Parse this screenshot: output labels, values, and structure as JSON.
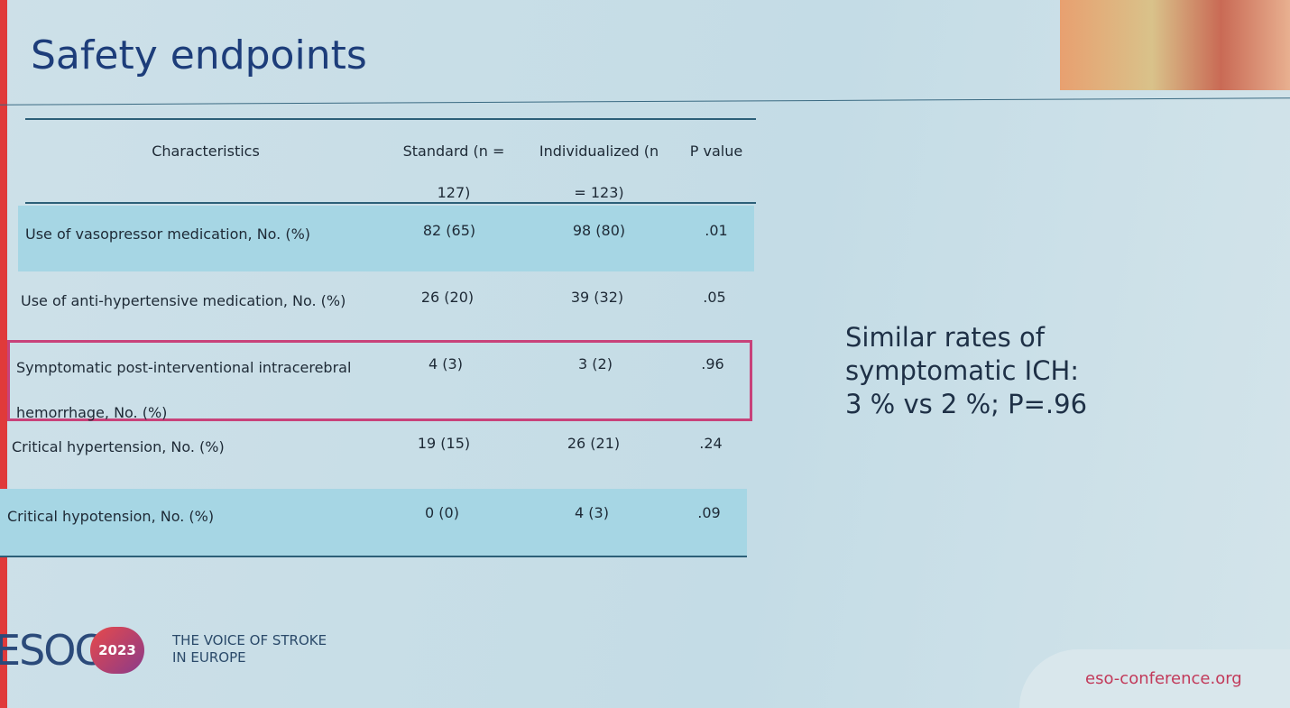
{
  "header": {
    "title": "Safety endpoints"
  },
  "table": {
    "columns": [
      [
        "Characteristics"
      ],
      [
        "Standard (n =",
        "127)"
      ],
      [
        "Individualized (n",
        "= 123)"
      ],
      [
        "P value"
      ]
    ],
    "rows": [
      [
        [
          "Use of vasopressor medication, No. (%)"
        ],
        "82 (65)",
        "98 (80)",
        ".01"
      ],
      [
        [
          "Use of anti-hypertensive medication, No. (%)"
        ],
        "26 (20)",
        "39 (32)",
        ".05"
      ],
      [
        [
          "Symptomatic post-interventional intracerebral",
          "hemorrhage, No. (%)"
        ],
        "4 (3)",
        "3 (2)",
        ".96"
      ],
      [
        [
          "Critical hypertension, No. (%)"
        ],
        "19 (15)",
        "26 (21)",
        ".24"
      ],
      [
        [
          "Critical hypotension, No. (%)"
        ],
        "0 (0)",
        "4 (3)",
        ".09"
      ]
    ]
  },
  "callout": [
    "Similar rates of",
    "symptomatic ICH:",
    "3 % vs 2 %; P=.96"
  ],
  "footer": {
    "logo": "ESOC",
    "year": "2023",
    "tagline": [
      "THE VOICE OF STROKE",
      "IN EUROPE"
    ],
    "url": "eso-conference.org"
  }
}
